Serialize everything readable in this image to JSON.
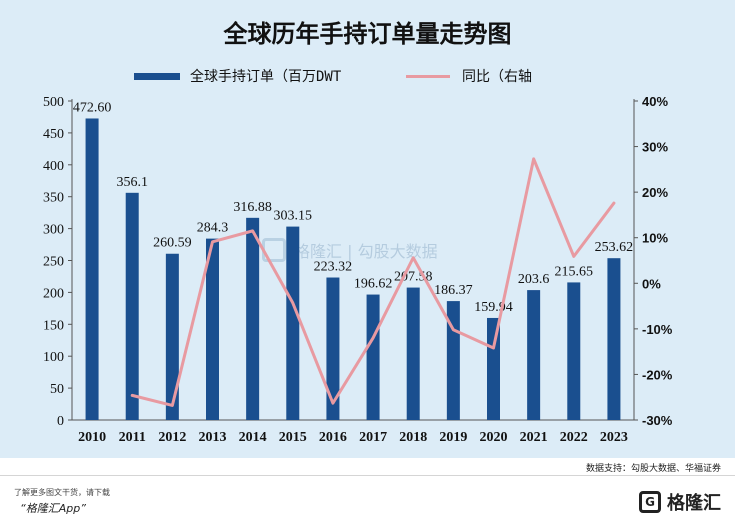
{
  "title": "全球历年手持订单量走势图",
  "legend": {
    "bar_label": "全球手持订单（百万DWT",
    "line_label": "同比（右轴"
  },
  "source": "数据支持：勾股大数据、华福证券",
  "watermark": "格隆汇 | 勾股大数据",
  "footer": {
    "line1": "了解更多图文干货，请下载",
    "line2": "“格隆汇App”"
  },
  "brand": {
    "mark": "G",
    "name": "格隆汇"
  },
  "colors": {
    "bar": "#1a4f8f",
    "line": "#e89aa1",
    "background": "#dcecf7"
  },
  "chart_data": {
    "type": "bar",
    "title": "全球历年手持订单量走势图",
    "categories": [
      "2010",
      "2011",
      "2012",
      "2013",
      "2014",
      "2015",
      "2016",
      "2017",
      "2018",
      "2019",
      "2020",
      "2021",
      "2022",
      "2023"
    ],
    "series": [
      {
        "name": "全球手持订单（百万DWT",
        "type": "bar",
        "axis": "left",
        "values": [
          472.6,
          356.1,
          260.59,
          284.3,
          316.88,
          303.15,
          223.32,
          196.62,
          207.58,
          186.37,
          159.94,
          203.6,
          215.65,
          253.62
        ],
        "labels": [
          "472.60",
          "356.1",
          "260.59",
          "284.3",
          "316.88",
          "303.15",
          "223.32",
          "196.62",
          "207.58",
          "186.37",
          "159.94",
          "203.6",
          "215.65",
          "253.62"
        ]
      },
      {
        "name": "同比（右轴",
        "type": "line",
        "axis": "right",
        "values": [
          null,
          -24.6,
          -26.8,
          9.1,
          11.5,
          -4.3,
          -26.3,
          -12.0,
          5.6,
          -10.2,
          -14.2,
          27.3,
          5.9,
          17.6
        ]
      }
    ],
    "y_left": {
      "min": 0,
      "max": 500,
      "ticks": [
        0,
        50,
        100,
        150,
        200,
        250,
        300,
        350,
        400,
        450,
        500
      ]
    },
    "y_right": {
      "min": -30,
      "max": 40,
      "ticks": [
        -30,
        -20,
        -10,
        0,
        10,
        20,
        30,
        40
      ],
      "tick_labels": [
        "-30%",
        "-20%",
        "-10%",
        "0%",
        "10%",
        "20%",
        "30%",
        "40%"
      ]
    },
    "grid": false,
    "legend_position": "top"
  }
}
